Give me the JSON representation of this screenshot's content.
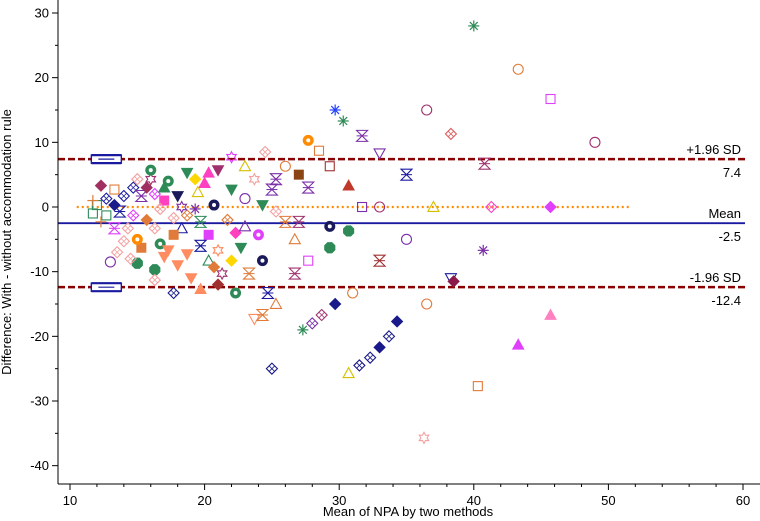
{
  "chart_data": {
    "type": "scatter",
    "title": "",
    "xlabel": "Mean of NPA by two methods",
    "ylabel": "Difference: With - without accommodation rule",
    "xlim": [
      10,
      60
    ],
    "ylim": [
      -42,
      32
    ],
    "xticks": [
      10,
      20,
      30,
      40,
      50,
      60
    ],
    "xtick_labels": [
      "10",
      "20",
      "30",
      "40",
      "50",
      "60"
    ],
    "yticks": [
      30,
      20,
      10,
      0,
      -10,
      -20,
      -30,
      -40
    ],
    "ytick_labels": [
      "30",
      "20",
      "10",
      "0",
      "-10",
      "-20",
      "-30",
      "-40"
    ],
    "reference_lines": [
      {
        "name": "upper-loa",
        "label": "+1.96 SD",
        "value_label": "7.4",
        "y": 7.4,
        "style": "dashed",
        "color": "#8b0000"
      },
      {
        "name": "mean",
        "label": "Mean",
        "value_label": "-2.5",
        "y": -2.5,
        "style": "solid",
        "color": "#1a1aa0"
      },
      {
        "name": "lower-loa",
        "label": "-1.96 SD",
        "value_label": "-12.4",
        "y": -12.4,
        "style": "dashed",
        "color": "#8b0000"
      },
      {
        "name": "zero",
        "label": "",
        "value_label": "",
        "y": 0,
        "style": "dotted",
        "color": "#ff8c00"
      }
    ],
    "ci_markers": [
      {
        "name": "upper-loa-ci",
        "x": 12.7,
        "y": 7.4,
        "color": "#1a1aa0"
      },
      {
        "name": "lower-loa-ci",
        "x": 12.7,
        "y": -12.4,
        "color": "#1a1aa0"
      }
    ],
    "points": [
      {
        "x": 40,
        "y": 28,
        "m": "asterisk",
        "c": "#2e8b57"
      },
      {
        "x": 43.3,
        "y": 21.3,
        "m": "circle",
        "c": "#e07b39"
      },
      {
        "x": 45.7,
        "y": 16.7,
        "m": "square",
        "c": "#e040fb"
      },
      {
        "x": 36.5,
        "y": 15,
        "m": "circle",
        "c": "#a0306e"
      },
      {
        "x": 29.7,
        "y": 15,
        "m": "asterisk",
        "c": "#2040ff"
      },
      {
        "x": 30.3,
        "y": 13.3,
        "m": "asterisk",
        "c": "#2e8b57"
      },
      {
        "x": 31.7,
        "y": 11,
        "m": "hourglass",
        "c": "#7b2fa8"
      },
      {
        "x": 38.3,
        "y": 11.3,
        "m": "diamond",
        "c": "#e06060"
      },
      {
        "x": 27.7,
        "y": 10.3,
        "m": "filledcircle",
        "c": "#ff8c00"
      },
      {
        "x": 28.5,
        "y": 8.7,
        "m": "square",
        "c": "#e07b39"
      },
      {
        "x": 33,
        "y": 8.3,
        "m": "invtriangle",
        "c": "#7b2fa8"
      },
      {
        "x": 49,
        "y": 10,
        "m": "circle",
        "c": "#a0306e"
      },
      {
        "x": 40.8,
        "y": 6.7,
        "m": "hourglass",
        "c": "#a0306e"
      },
      {
        "x": 35,
        "y": 5,
        "m": "hourglass",
        "c": "#1a1aa0"
      },
      {
        "x": 29.3,
        "y": 6.3,
        "m": "square",
        "c": "#a03030"
      },
      {
        "x": 27,
        "y": 5,
        "m": "filledsquare",
        "c": "#8b4513"
      },
      {
        "x": 30.7,
        "y": 3.3,
        "m": "filledtriangle",
        "c": "#c0392b"
      },
      {
        "x": 27.7,
        "y": 3,
        "m": "hourglass",
        "c": "#7b2fa8"
      },
      {
        "x": 25,
        "y": 2.7,
        "m": "hourglass",
        "c": "#7b2fa8"
      },
      {
        "x": 26,
        "y": 6.3,
        "m": "circle",
        "c": "#e07b39"
      },
      {
        "x": 24.5,
        "y": 8.5,
        "m": "diamond",
        "c": "#f4a0a0"
      },
      {
        "x": 31.7,
        "y": 0,
        "m": "square",
        "c": "#7b2fa8"
      },
      {
        "x": 33,
        "y": 0,
        "m": "circle",
        "c": "#a0306e"
      },
      {
        "x": 37,
        "y": 0,
        "m": "triangle",
        "c": "#d4c000"
      },
      {
        "x": 41.3,
        "y": 0,
        "m": "diamond",
        "c": "#ff40c0"
      },
      {
        "x": 45.7,
        "y": 0,
        "m": "filleddiamond",
        "c": "#e040fb"
      },
      {
        "x": 29.3,
        "y": -3,
        "m": "filledcircle",
        "c": "#1a1a5a"
      },
      {
        "x": 30.7,
        "y": -3.7,
        "m": "filledhex",
        "c": "#2e8b57"
      },
      {
        "x": 26.7,
        "y": -5,
        "m": "triangle",
        "c": "#e07b39"
      },
      {
        "x": 35,
        "y": -5,
        "m": "circle",
        "c": "#7b2fa8"
      },
      {
        "x": 29.3,
        "y": -6.3,
        "m": "filledhex",
        "c": "#2e8b57"
      },
      {
        "x": 40.7,
        "y": -6.7,
        "m": "asterisk",
        "c": "#7b2fa8"
      },
      {
        "x": 33,
        "y": -8.3,
        "m": "hourglass",
        "c": "#a03030"
      },
      {
        "x": 27.7,
        "y": -8.3,
        "m": "square",
        "c": "#e040fb"
      },
      {
        "x": 26.7,
        "y": -10.3,
        "m": "hourglass",
        "c": "#a0306e"
      },
      {
        "x": 38.3,
        "y": -11,
        "m": "invtriangle",
        "c": "#1a1aa0"
      },
      {
        "x": 38.5,
        "y": -11.5,
        "m": "filleddiamond",
        "c": "#8b1a4a"
      },
      {
        "x": 31,
        "y": -13.3,
        "m": "circle",
        "c": "#e07b39"
      },
      {
        "x": 29.7,
        "y": -15,
        "m": "filleddiamond",
        "c": "#1a1a8a"
      },
      {
        "x": 28.7,
        "y": -16.7,
        "m": "diamond",
        "c": "#a0306e"
      },
      {
        "x": 28,
        "y": -18,
        "m": "diamond",
        "c": "#7b2fa8"
      },
      {
        "x": 27.3,
        "y": -19,
        "m": "asterisk",
        "c": "#2e8b57"
      },
      {
        "x": 36.5,
        "y": -15,
        "m": "circle",
        "c": "#e07b39"
      },
      {
        "x": 34.3,
        "y": -17.7,
        "m": "filleddiamond",
        "c": "#1a1a8a"
      },
      {
        "x": 33.7,
        "y": -20,
        "m": "diamond",
        "c": "#1a1a8a"
      },
      {
        "x": 33,
        "y": -21.7,
        "m": "filleddiamond",
        "c": "#1a1a8a"
      },
      {
        "x": 32.3,
        "y": -23.3,
        "m": "diamond",
        "c": "#1a1a8a"
      },
      {
        "x": 31.5,
        "y": -24.5,
        "m": "diamond",
        "c": "#1a1a8a"
      },
      {
        "x": 30.7,
        "y": -25.7,
        "m": "triangle",
        "c": "#d4c000"
      },
      {
        "x": 25,
        "y": -25,
        "m": "diamond",
        "c": "#1a1a8a"
      },
      {
        "x": 43.3,
        "y": -21.3,
        "m": "filledtriangle",
        "c": "#e040fb"
      },
      {
        "x": 45.7,
        "y": -16.7,
        "m": "filledtriangle",
        "c": "#ff80c0"
      },
      {
        "x": 40.3,
        "y": -27.7,
        "m": "square",
        "c": "#e07b39"
      },
      {
        "x": 36.3,
        "y": -35.7,
        "m": "star",
        "c": "#f4a0a0"
      },
      {
        "x": 23.7,
        "y": -17.3,
        "m": "invtriangle",
        "c": "#ff8c60"
      },
      {
        "x": 22.3,
        "y": -13.3,
        "m": "filledcircle",
        "c": "#2e8b57"
      },
      {
        "x": 21,
        "y": -12,
        "m": "filleddiamond",
        "c": "#a03030"
      },
      {
        "x": 19,
        "y": -11,
        "m": "filledinvtriangle",
        "c": "#ff8c60"
      },
      {
        "x": 18,
        "y": -9,
        "m": "filledinvtriangle",
        "c": "#ff8c60"
      },
      {
        "x": 16.3,
        "y": -9.7,
        "m": "filledhex",
        "c": "#2e8b57"
      },
      {
        "x": 15,
        "y": -8.7,
        "m": "filledhex",
        "c": "#2e8b57"
      },
      {
        "x": 17.7,
        "y": -13.3,
        "m": "diamond",
        "c": "#1a1a8a"
      },
      {
        "x": 24.7,
        "y": -13.3,
        "m": "hourglass",
        "c": "#1a1aa0"
      },
      {
        "x": 25.3,
        "y": -15,
        "m": "triangle",
        "c": "#e07b39"
      },
      {
        "x": 24.3,
        "y": -16.7,
        "m": "hourglass",
        "c": "#e07b39"
      },
      {
        "x": 23.3,
        "y": -10.3,
        "m": "hourglass",
        "c": "#e07b39"
      },
      {
        "x": 24.3,
        "y": -8.3,
        "m": "filledcircle",
        "c": "#1a1a5a"
      },
      {
        "x": 22,
        "y": -8.3,
        "m": "filleddiamond",
        "c": "#ffd700"
      },
      {
        "x": 22.3,
        "y": -4,
        "m": "filleddiamond",
        "c": "#ff40c0"
      },
      {
        "x": 20.3,
        "y": -4.3,
        "m": "filledsquare",
        "c": "#e040fb"
      },
      {
        "x": 21.7,
        "y": -2,
        "m": "diamond",
        "c": "#e07b39"
      },
      {
        "x": 23,
        "y": -3,
        "m": "triangle",
        "c": "#7b2fa8"
      },
      {
        "x": 26,
        "y": -2.3,
        "m": "hourglass",
        "c": "#e07b39"
      },
      {
        "x": 25.3,
        "y": -0.7,
        "m": "diamond",
        "c": "#f4a0a0"
      },
      {
        "x": 24.3,
        "y": 0.3,
        "m": "filledinvtriangle",
        "c": "#2e8b57"
      },
      {
        "x": 23,
        "y": 1.3,
        "m": "circle",
        "c": "#7b2fa8"
      },
      {
        "x": 22,
        "y": 2.7,
        "m": "filledinvtriangle",
        "c": "#2e8b57"
      },
      {
        "x": 21,
        "y": 5.7,
        "m": "filledinvtriangle",
        "c": "#a0306e"
      },
      {
        "x": 20,
        "y": 3.7,
        "m": "filledtriangle",
        "c": "#ff40c0"
      },
      {
        "x": 19.5,
        "y": 2.3,
        "m": "triangle",
        "c": "#d4c000"
      },
      {
        "x": 20.7,
        "y": 0.3,
        "m": "filledcircle",
        "c": "#1a1a5a"
      },
      {
        "x": 19.3,
        "y": -0.3,
        "m": "asterisk",
        "c": "#7b2fa8"
      },
      {
        "x": 18.7,
        "y": -1.3,
        "m": "diamond",
        "c": "#e07b39"
      },
      {
        "x": 19.7,
        "y": -2.3,
        "m": "hourglass",
        "c": "#2e8b57"
      },
      {
        "x": 18.3,
        "y": -3.3,
        "m": "triangle",
        "c": "#1a1aa0"
      },
      {
        "x": 19.7,
        "y": -6,
        "m": "hourglass",
        "c": "#1a1aa0"
      },
      {
        "x": 21,
        "y": -6.7,
        "m": "star",
        "c": "#ff8c60"
      },
      {
        "x": 20.3,
        "y": -8.3,
        "m": "triangle",
        "c": "#2e8b57"
      },
      {
        "x": 16.7,
        "y": -5.7,
        "m": "filledcircle",
        "c": "#2e8b57"
      },
      {
        "x": 17.3,
        "y": -6.7,
        "m": "filledinvtriangle",
        "c": "#ff8c60"
      },
      {
        "x": 17,
        "y": -7.7,
        "m": "filledinvtriangle",
        "c": "#ff8c60"
      },
      {
        "x": 15.3,
        "y": -6.3,
        "m": "filledsquare",
        "c": "#e07b39"
      },
      {
        "x": 15,
        "y": -5,
        "m": "filledcircle",
        "c": "#ff8c00"
      },
      {
        "x": 14,
        "y": -5.3,
        "m": "diamond",
        "c": "#f4a0a0"
      },
      {
        "x": 13.5,
        "y": -7,
        "m": "diamond",
        "c": "#f4a0a0"
      },
      {
        "x": 14.5,
        "y": -8,
        "m": "diamond",
        "c": "#f4a0a0"
      },
      {
        "x": 13,
        "y": -8.5,
        "m": "circle",
        "c": "#7b2fa8"
      },
      {
        "x": 16.3,
        "y": -3.3,
        "m": "diamond",
        "c": "#f4a0a0"
      },
      {
        "x": 15.7,
        "y": -2,
        "m": "filleddiamond",
        "c": "#e07b39"
      },
      {
        "x": 14.7,
        "y": -1.3,
        "m": "diamond",
        "c": "#e040fb"
      },
      {
        "x": 13.7,
        "y": -0.7,
        "m": "hourglass",
        "c": "#1a1aa0"
      },
      {
        "x": 12.7,
        "y": -1.3,
        "m": "square",
        "c": "#2e8b57"
      },
      {
        "x": 12.3,
        "y": -2.3,
        "m": "cross",
        "c": "#e07b39"
      },
      {
        "x": 13.3,
        "y": -3.3,
        "m": "hourglass",
        "c": "#e040fb"
      },
      {
        "x": 11.7,
        "y": -1,
        "m": "square",
        "c": "#2e8b57"
      },
      {
        "x": 12,
        "y": 0.3,
        "m": "square",
        "c": "#2e8b57"
      },
      {
        "x": 11.7,
        "y": 1,
        "m": "cross",
        "c": "#e07b39"
      },
      {
        "x": 12.7,
        "y": 1.3,
        "m": "diamond",
        "c": "#1a1aa0"
      },
      {
        "x": 13.3,
        "y": 0.3,
        "m": "filleddiamond",
        "c": "#1a1a8a"
      },
      {
        "x": 14,
        "y": 1.7,
        "m": "diamond",
        "c": "#1a1aa0"
      },
      {
        "x": 14.7,
        "y": 3,
        "m": "diamond",
        "c": "#1a1aa0"
      },
      {
        "x": 15.3,
        "y": 1.7,
        "m": "hourglass",
        "c": "#7b2fa8"
      },
      {
        "x": 15.7,
        "y": 3,
        "m": "filleddiamond",
        "c": "#a03060"
      },
      {
        "x": 16.3,
        "y": 2,
        "m": "diamond",
        "c": "#e040fb"
      },
      {
        "x": 17,
        "y": 3,
        "m": "filledtriangle",
        "c": "#2e8b57"
      },
      {
        "x": 17,
        "y": 1,
        "m": "filledsquare",
        "c": "#ff40c0"
      },
      {
        "x": 18,
        "y": 1.7,
        "m": "filledinvtriangle",
        "c": "#1a1a5a"
      },
      {
        "x": 18.3,
        "y": 0,
        "m": "star",
        "c": "#7b2fa8"
      },
      {
        "x": 17.7,
        "y": -1.7,
        "m": "diamond",
        "c": "#f4a0a0"
      },
      {
        "x": 16.7,
        "y": -0.3,
        "m": "diamond",
        "c": "#f4a0a0"
      },
      {
        "x": 17.3,
        "y": 4,
        "m": "filledcircle",
        "c": "#2e8b57"
      },
      {
        "x": 16,
        "y": 4.3,
        "m": "star",
        "c": "#a0306e"
      },
      {
        "x": 15,
        "y": 4.3,
        "m": "diamond",
        "c": "#f4a0a0"
      },
      {
        "x": 16,
        "y": 5.7,
        "m": "filledcircle",
        "c": "#2e8b57"
      },
      {
        "x": 18.7,
        "y": 5.3,
        "m": "filledinvtriangle",
        "c": "#2e8b57"
      },
      {
        "x": 19.3,
        "y": 4.3,
        "m": "filleddiamond",
        "c": "#ffd700"
      },
      {
        "x": 20.3,
        "y": 5.3,
        "m": "filledtriangle",
        "c": "#ff40c0"
      },
      {
        "x": 22,
        "y": 7.7,
        "m": "star",
        "c": "#e040fb"
      },
      {
        "x": 23,
        "y": 6.3,
        "m": "triangle",
        "c": "#d4c000"
      },
      {
        "x": 13.3,
        "y": 2.7,
        "m": "square",
        "c": "#e07b39"
      },
      {
        "x": 12.3,
        "y": 3.3,
        "m": "filleddiamond",
        "c": "#a03060"
      },
      {
        "x": 17.7,
        "y": -4.3,
        "m": "filledsquare",
        "c": "#e07b39"
      },
      {
        "x": 14.3,
        "y": -3.3,
        "m": "diamond",
        "c": "#f4a0a0"
      },
      {
        "x": 18.7,
        "y": -7.3,
        "m": "filledinvtriangle",
        "c": "#ff8c60"
      },
      {
        "x": 21.3,
        "y": -10.3,
        "m": "star",
        "c": "#a0306e"
      },
      {
        "x": 16.3,
        "y": -11.3,
        "m": "diamond",
        "c": "#f4a0a0"
      },
      {
        "x": 19.7,
        "y": -12.7,
        "m": "filledtriangle",
        "c": "#ff8c60"
      },
      {
        "x": 20.7,
        "y": -9.3,
        "m": "filleddiamond",
        "c": "#e07b39"
      },
      {
        "x": 22.7,
        "y": -6.3,
        "m": "filledinvtriangle",
        "c": "#2e8b57"
      },
      {
        "x": 24,
        "y": -4.3,
        "m": "filledcircle",
        "c": "#e040fb"
      },
      {
        "x": 27,
        "y": -2.3,
        "m": "hourglass",
        "c": "#a0306e"
      },
      {
        "x": 25.3,
        "y": 4.3,
        "m": "hourglass",
        "c": "#7b2fa8"
      },
      {
        "x": 23.7,
        "y": 4.3,
        "m": "star",
        "c": "#f4a0a0"
      }
    ]
  }
}
